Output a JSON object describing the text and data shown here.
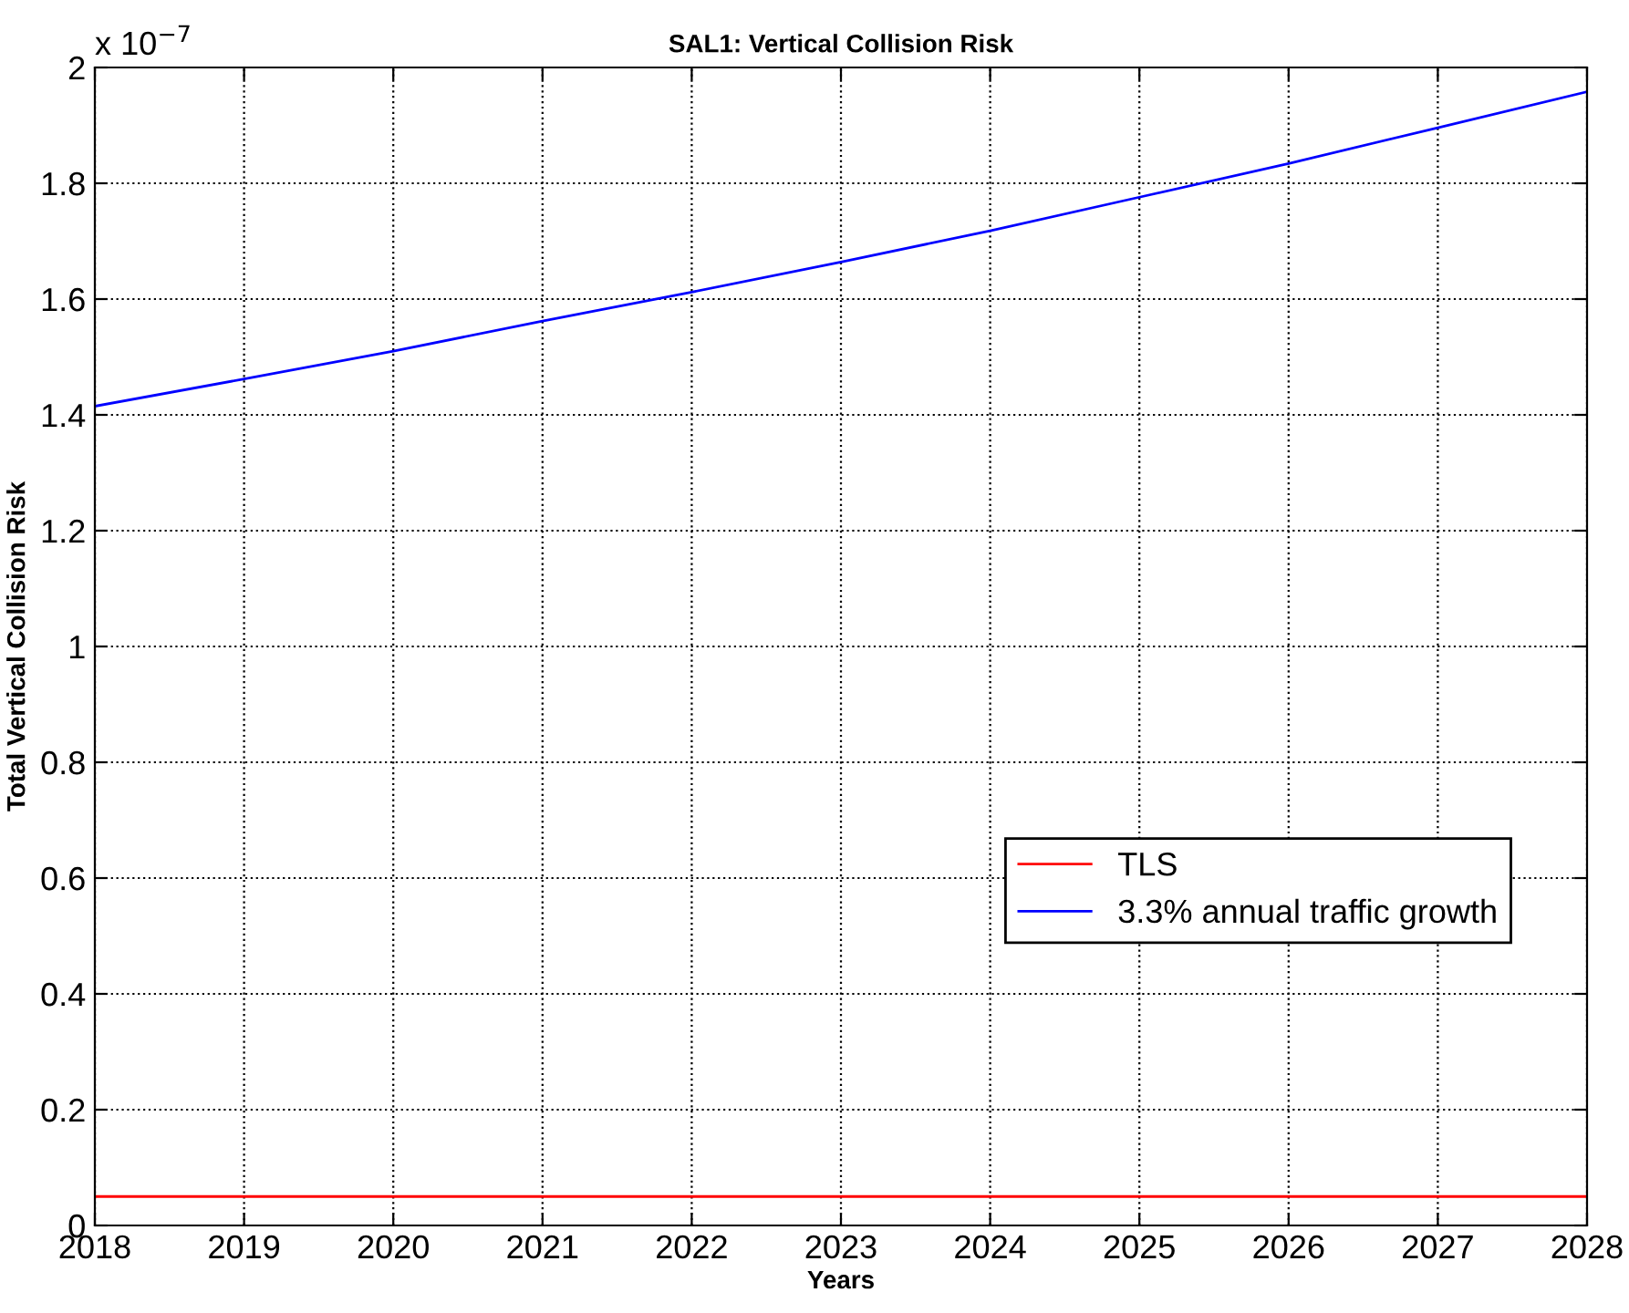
{
  "chart_data": {
    "type": "line",
    "title": "SAL1: Vertical Collision Risk",
    "xlabel": "Years",
    "ylabel": "Total Vertical Collision Risk",
    "x": [
      2018,
      2019,
      2020,
      2021,
      2022,
      2023,
      2024,
      2025,
      2026,
      2027,
      2028
    ],
    "series": [
      {
        "name": "TLS",
        "color": "#ff0000",
        "values": [
          0.05,
          0.05,
          0.05,
          0.05,
          0.05,
          0.05,
          0.05,
          0.05,
          0.05,
          0.05,
          0.05
        ]
      },
      {
        "name": "3.3% annual traffic growth",
        "color": "#0000ff",
        "values": [
          1.415,
          1.462,
          1.51,
          1.562,
          1.612,
          1.664,
          1.718,
          1.776,
          1.834,
          1.896,
          1.958
        ]
      }
    ],
    "xlim": [
      2018,
      2028
    ],
    "xticks": [
      2018,
      2019,
      2020,
      2021,
      2022,
      2023,
      2024,
      2025,
      2026,
      2027,
      2028
    ],
    "ylim": [
      0,
      2
    ],
    "yticks": [
      0,
      0.2,
      0.4,
      0.6,
      0.8,
      1,
      1.2,
      1.4,
      1.6,
      1.8,
      2
    ],
    "annotations": [
      "x 10$^{−7}$"
    ],
    "grid": true,
    "legend": "bottom right",
    "marker": "none",
    "line_style": "solid"
  }
}
